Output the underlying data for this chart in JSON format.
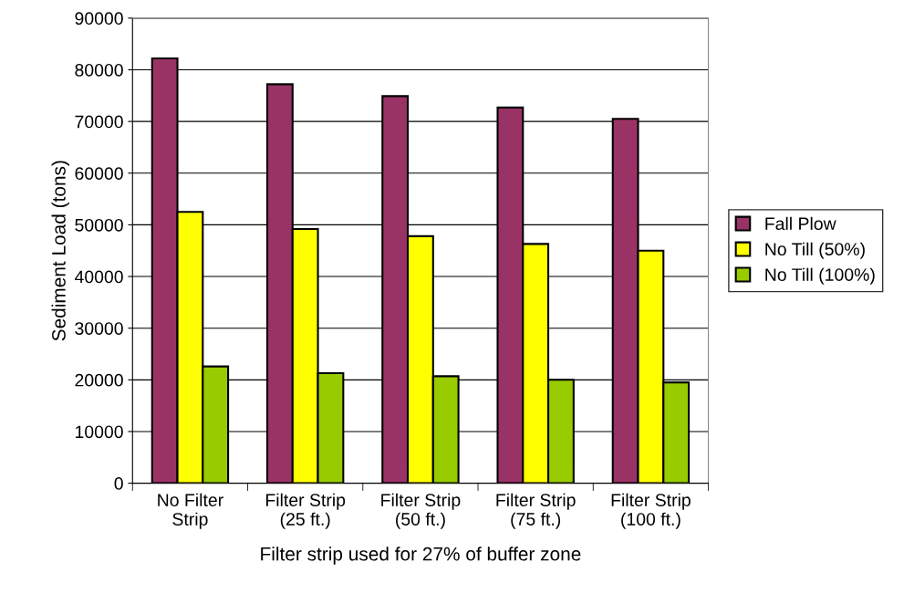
{
  "chart_data": {
    "type": "bar",
    "xlabel": "Filter strip used for 27% of buffer zone",
    "ylabel": "Sediment Load (tons)",
    "categories": [
      "No Filter\nStrip",
      "Filter Strip\n(25 ft.)",
      "Filter Strip\n(50 ft.)",
      "Filter Strip\n(75 ft.)",
      "Filter Strip\n(100 ft.)"
    ],
    "series": [
      {
        "name": "Fall Plow",
        "color": "#993366",
        "values": [
          82200,
          77200,
          74900,
          72700,
          70500
        ]
      },
      {
        "name": "No Till (50%)",
        "color": "#ffff00",
        "values": [
          52500,
          49200,
          47800,
          46300,
          45000
        ]
      },
      {
        "name": "No Till (100%)",
        "color": "#99cc00",
        "values": [
          22600,
          21300,
          20700,
          20000,
          19500
        ]
      }
    ],
    "ylim": [
      0,
      90000
    ],
    "yticks": [
      0,
      10000,
      20000,
      30000,
      40000,
      50000,
      60000,
      70000,
      80000,
      90000
    ],
    "grid": "y",
    "legend": "right"
  }
}
